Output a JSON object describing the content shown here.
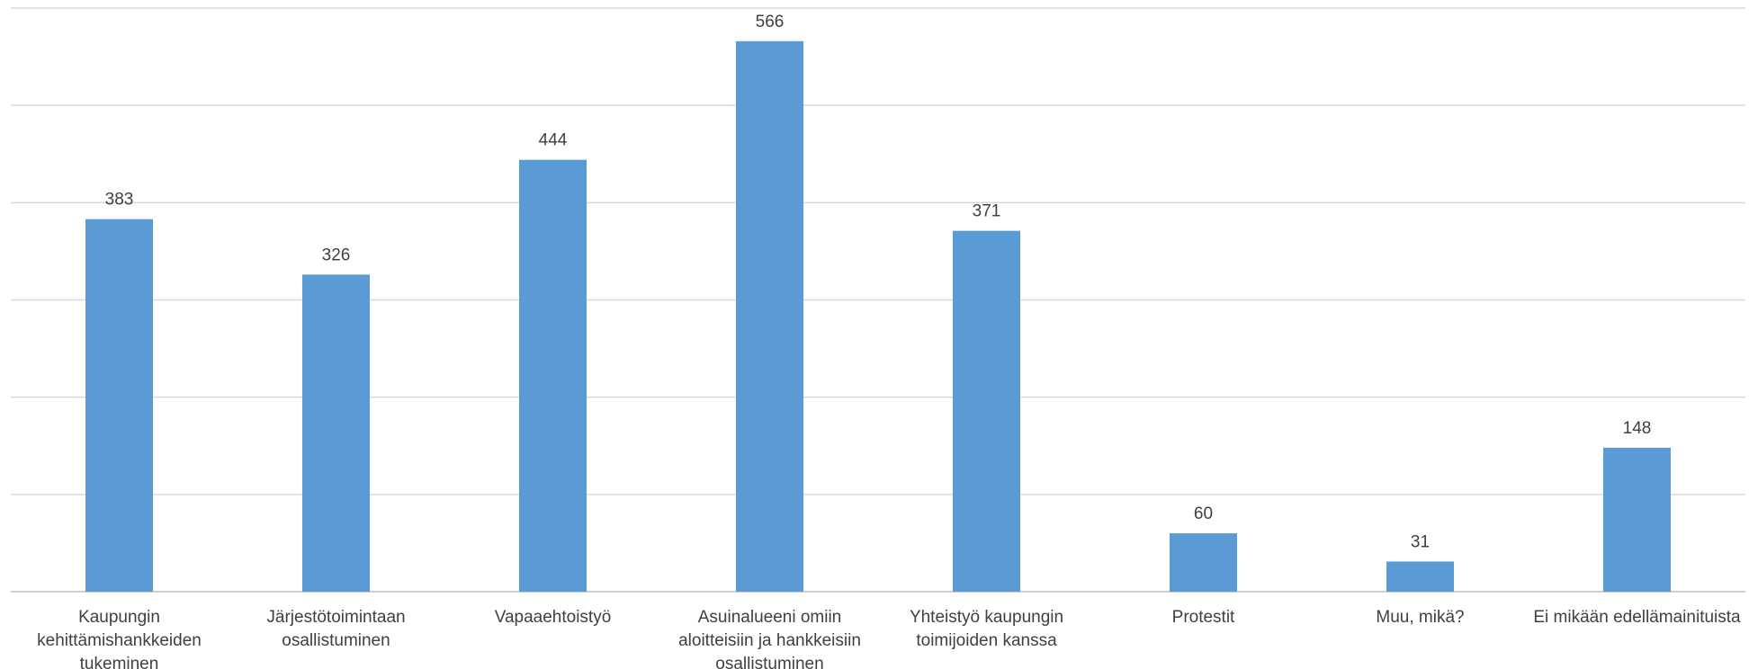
{
  "chart_data": {
    "type": "bar",
    "categories": [
      [
        "Kaupungin",
        "kehittämishankkeiden",
        "tukeminen"
      ],
      [
        "Järjestötoimintaan",
        "osallistuminen"
      ],
      [
        "Vapaaehtoistyö"
      ],
      [
        "Asuinalueeni omiin",
        "aloitteisiin ja hankkeisiin",
        "osallistuminen"
      ],
      [
        "Yhteistyö kaupungin",
        "toimijoiden kanssa"
      ],
      [
        "Protestit"
      ],
      [
        "Muu, mikä?"
      ],
      [
        "Ei mikään edellämainituista"
      ]
    ],
    "values": [
      383,
      326,
      444,
      566,
      371,
      60,
      31,
      148
    ],
    "ylim": [
      0,
      600
    ],
    "gridlines": [
      0,
      100,
      200,
      300,
      400,
      500,
      600
    ],
    "data_labels": true,
    "legend": "none",
    "bar_color": "#5b9bd5",
    "grid_color": "#d9d9d9",
    "text_color": "#404040"
  }
}
